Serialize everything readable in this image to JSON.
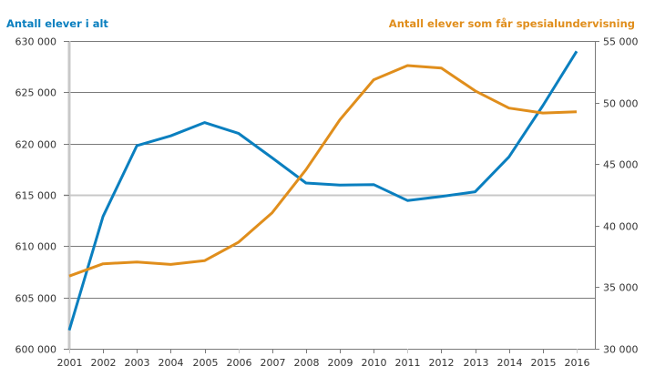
{
  "chart_data": {
    "type": "line",
    "title": "",
    "xlabel": "",
    "x": [
      "2001",
      "2002",
      "2003",
      "2004",
      "2005",
      "2006",
      "2007",
      "2008",
      "2009",
      "2010",
      "2011",
      "2012",
      "2013",
      "2014",
      "2015",
      "2016"
    ],
    "left_axis": {
      "label": "Antall elever i alt",
      "ylim": [
        600000,
        630000
      ],
      "ticks": [
        600000,
        605000,
        610000,
        615000,
        620000,
        625000,
        630000
      ],
      "tick_labels": [
        "600 000",
        "605 000",
        "610 000",
        "615 000",
        "620 000",
        "625 000",
        "630 000"
      ]
    },
    "right_axis": {
      "label": "Antall elever som får spesialundervisning",
      "ylim": [
        30000,
        55000
      ],
      "ticks": [
        30000,
        35000,
        40000,
        45000,
        50000,
        55000
      ],
      "tick_labels": [
        "30 000",
        "35 000",
        "40 000",
        "45 000",
        "50 000",
        "55 000"
      ]
    },
    "series": [
      {
        "name": "Antall elever i alt",
        "axis": "left",
        "color": "#0a7fbf",
        "values": [
          601800,
          612900,
          619800,
          620750,
          622050,
          621000,
          618600,
          616150,
          615950,
          616000,
          614450,
          614850,
          615300,
          618700,
          623700,
          629000
        ]
      },
      {
        "name": "Antall elever som får spesialundervisning",
        "axis": "right",
        "color": "#e08e1c",
        "values": [
          35900,
          36900,
          37050,
          36850,
          37150,
          38650,
          41050,
          44550,
          48600,
          51850,
          53000,
          52800,
          50950,
          49550,
          49150,
          49250
        ]
      }
    ],
    "grid": true,
    "legend": "axis-titles-top"
  }
}
